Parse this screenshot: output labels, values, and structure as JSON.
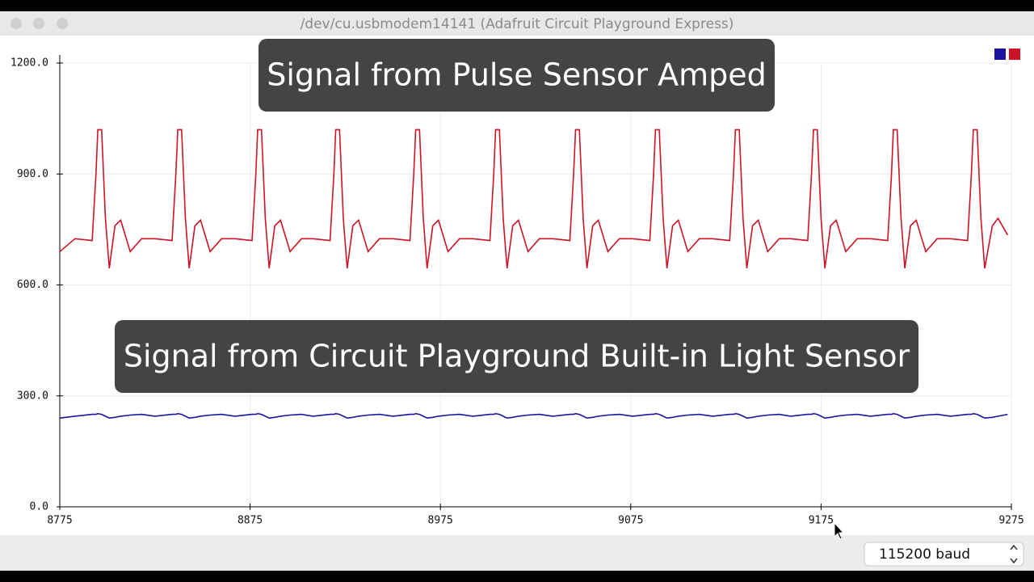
{
  "window": {
    "title": "/dev/cu.usbmodem14141 (Adafruit Circuit Playground Express)"
  },
  "chart_data": {
    "type": "line",
    "x": [
      8775,
      8783,
      8792,
      8794,
      8795,
      8797,
      8799,
      8801,
      8804,
      8807,
      8812,
      8818,
      8825,
      8834,
      8836,
      8837,
      8839,
      8841,
      8843,
      8846,
      8849,
      8854,
      8860,
      8867,
      8876,
      8878,
      8879,
      8881,
      8883,
      8885,
      8888,
      8891,
      8896,
      8902,
      8908,
      8917,
      8919,
      8920,
      8922,
      8924,
      8926,
      8929,
      8932,
      8937,
      8943,
      8950,
      8959,
      8961,
      8962,
      8964,
      8966,
      8968,
      8971,
      8974,
      8979,
      8985,
      8992,
      9001,
      9003,
      9004,
      9006,
      9008,
      9010,
      9013,
      9016,
      9021,
      9027,
      9034,
      9043,
      9045,
      9046,
      9048,
      9050,
      9052,
      9055,
      9058,
      9063,
      9069,
      9076,
      9085,
      9087,
      9088,
      9090,
      9092,
      9094,
      9097,
      9100,
      9105,
      9111,
      9118,
      9127,
      9129,
      9130,
      9132,
      9134,
      9136,
      9139,
      9142,
      9147,
      9153,
      9159,
      9168,
      9170,
      9171,
      9173,
      9175,
      9177,
      9180,
      9183,
      9188,
      9194,
      9201,
      9210,
      9212,
      9213,
      9215,
      9217,
      9219,
      9222,
      9225,
      9230,
      9236,
      9243,
      9252,
      9254,
      9255,
      9257,
      9259,
      9261,
      9265,
      9268,
      9273
    ],
    "series": [
      {
        "color": "#1c14a0",
        "values": [
          240,
          245,
          250,
          250,
          252,
          250,
          245,
          240,
          242,
          245,
          248,
          250,
          245,
          250,
          250,
          252,
          250,
          245,
          240,
          242,
          245,
          248,
          250,
          245,
          250,
          250,
          252,
          250,
          245,
          240,
          242,
          245,
          248,
          250,
          245,
          250,
          250,
          252,
          250,
          245,
          240,
          242,
          245,
          248,
          250,
          245,
          250,
          250,
          252,
          250,
          245,
          240,
          242,
          245,
          248,
          250,
          245,
          250,
          250,
          252,
          250,
          245,
          240,
          242,
          245,
          248,
          250,
          245,
          250,
          250,
          252,
          250,
          245,
          240,
          242,
          245,
          248,
          250,
          245,
          250,
          250,
          252,
          250,
          245,
          240,
          242,
          245,
          248,
          250,
          245,
          250,
          250,
          252,
          250,
          245,
          240,
          242,
          245,
          248,
          250,
          245,
          250,
          250,
          252,
          250,
          245,
          240,
          242,
          245,
          248,
          250,
          245,
          250,
          250,
          252,
          250,
          245,
          240,
          242,
          245,
          248,
          250,
          245,
          250,
          250,
          252,
          250,
          245,
          240,
          242,
          245,
          250
        ]
      },
      {
        "color": "#cc1426",
        "values": [
          690,
          725,
          720,
          900,
          1020,
          1020,
          780,
          645,
          760,
          775,
          690,
          725,
          725,
          720,
          900,
          1020,
          1020,
          780,
          645,
          760,
          775,
          690,
          725,
          725,
          720,
          900,
          1020,
          1020,
          780,
          645,
          760,
          775,
          690,
          725,
          725,
          720,
          900,
          1020,
          1020,
          780,
          645,
          760,
          775,
          690,
          725,
          725,
          720,
          900,
          1020,
          1020,
          780,
          645,
          760,
          775,
          690,
          725,
          725,
          720,
          900,
          1020,
          1020,
          780,
          645,
          760,
          775,
          690,
          725,
          725,
          720,
          900,
          1020,
          1020,
          780,
          645,
          760,
          775,
          690,
          725,
          725,
          720,
          900,
          1020,
          1020,
          780,
          645,
          760,
          775,
          690,
          725,
          725,
          720,
          900,
          1020,
          1020,
          780,
          645,
          760,
          775,
          690,
          725,
          725,
          720,
          900,
          1020,
          1020,
          780,
          645,
          760,
          775,
          690,
          725,
          725,
          720,
          900,
          1020,
          1020,
          780,
          645,
          760,
          775,
          690,
          725,
          725,
          720,
          900,
          1020,
          1020,
          780,
          645,
          760,
          780,
          735
        ]
      }
    ],
    "xlim": [
      8775,
      9275
    ],
    "xticks": [
      8775,
      8875,
      8975,
      9075,
      9175,
      9275
    ],
    "ylim": [
      0,
      1200
    ],
    "yticks": [
      {
        "value": 0,
        "label": "0.0"
      },
      {
        "value": 300,
        "label": "300.0"
      },
      {
        "value": 600,
        "label": "600.0"
      },
      {
        "value": 900,
        "label": "900.0"
      },
      {
        "value": 1200,
        "label": "1200.0"
      }
    ],
    "grid": true,
    "legend": "upper right",
    "annotations": [
      "Signal from Pulse Sensor Amped",
      "Signal from Circuit Playground Built-in Light Sensor"
    ]
  },
  "status_bar": {
    "baud": "115200 baud"
  }
}
